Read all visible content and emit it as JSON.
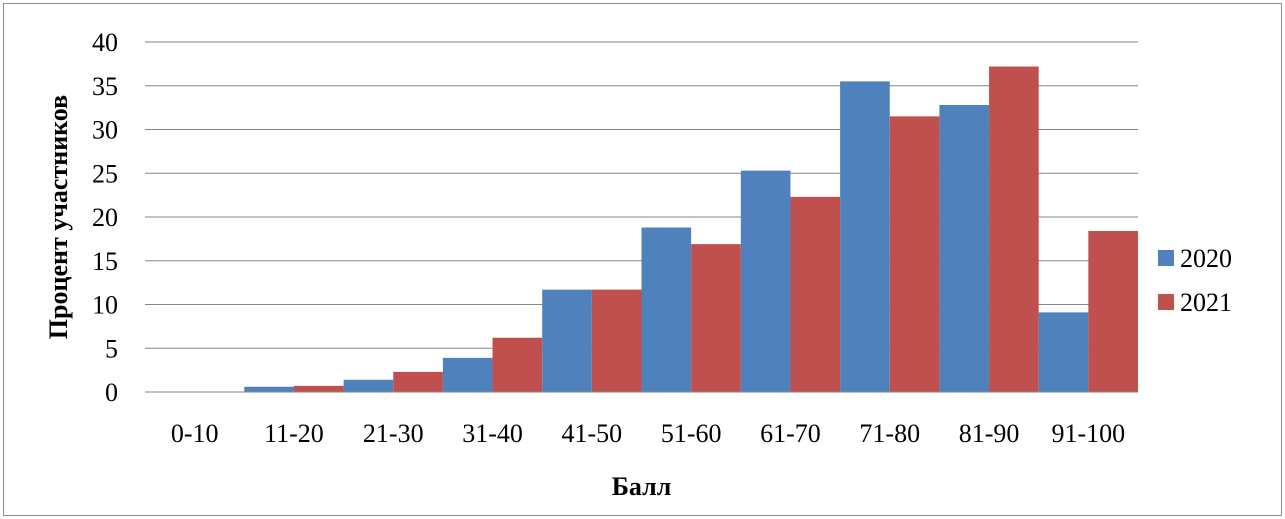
{
  "chart_data": {
    "type": "bar",
    "categories": [
      "0-10",
      "11-20",
      "21-30",
      "31-40",
      "41-50",
      "51-60",
      "61-70",
      "71-80",
      "81-90",
      "91-100"
    ],
    "series": [
      {
        "name": "2020",
        "color": "#4f81bd",
        "values": [
          0,
          0.6,
          1.4,
          3.9,
          11.7,
          18.8,
          25.3,
          35.5,
          32.8,
          9.1
        ]
      },
      {
        "name": "2021",
        "color": "#c0504d",
        "values": [
          0,
          0.7,
          2.3,
          6.2,
          11.7,
          16.9,
          22.3,
          31.5,
          37.2,
          18.4
        ]
      }
    ],
    "xlabel": "Балл",
    "ylabel": "Процент  участников",
    "ylim": [
      0,
      40
    ],
    "yticks": [
      "0",
      "5",
      "10",
      "15",
      "20",
      "25",
      "30",
      "35",
      "40"
    ],
    "grid": true,
    "legend_position": "right"
  }
}
